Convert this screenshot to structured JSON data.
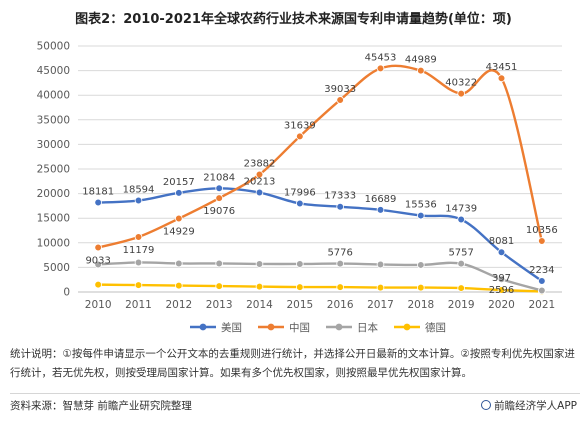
{
  "title": "图表2：2010-2021年全球农药行业技术来源国专利申请量趋势(单位：项)",
  "note": "统计说明：①按每件申请显示一个公开文本的去重规则进行统计，并选择公开日最新的文本计算。②按照专利优先权国家进行统计，若无优先权，则按受理局国家计算。如果有多个优先权国家，则按照最早优先权国家计算。",
  "source": "资料来源：智慧芽 前瞻产业研究院整理",
  "brand": "前瞻经济学人APP",
  "colors": {
    "usa": "#4472c4",
    "china": "#ed7d31",
    "japan": "#a5a5a5",
    "germany": "#ffc000",
    "grid": "#d9d9d9",
    "axis_text": "#595959"
  },
  "chart_data": {
    "type": "line",
    "title": "图表2：2010-2021年全球农药行业技术来源国专利申请量趋势(单位：项)",
    "x": [
      "2010",
      "2011",
      "2012",
      "2013",
      "2014",
      "2015",
      "2016",
      "2017",
      "2018",
      "2019",
      "2020",
      "2021"
    ],
    "ylim": [
      0,
      50000
    ],
    "yticks": [
      0,
      5000,
      10000,
      15000,
      20000,
      25000,
      30000,
      35000,
      40000,
      45000,
      50000
    ],
    "grid": true,
    "legend_position": "bottom",
    "series": [
      {
        "name": "美国",
        "color": "#4472c4",
        "values": [
          18181,
          18594,
          20157,
          21084,
          20213,
          17996,
          17333,
          16689,
          15536,
          14739,
          8081,
          2234
        ],
        "labels": [
          "18181",
          "18594",
          "20157",
          "21084",
          "20213",
          "17996",
          "17333",
          "16689",
          "15536",
          "14739",
          "8081",
          "2234"
        ]
      },
      {
        "name": "中国",
        "color": "#ed7d31",
        "values": [
          9033,
          11179,
          14929,
          19076,
          23882,
          31639,
          39033,
          45453,
          44989,
          40322,
          43451,
          10356
        ],
        "labels": [
          "9033",
          "11179",
          "14929",
          "19076",
          "23882",
          "31639",
          "39033",
          "45453",
          "44989",
          "40322",
          "43451",
          "10356"
        ]
      },
      {
        "name": "日本",
        "color": "#a5a5a5",
        "values": [
          5600,
          6000,
          5800,
          5800,
          5700,
          5700,
          5776,
          5600,
          5500,
          5757,
          2596,
          300
        ],
        "labels": [
          "",
          "",
          "",
          "",
          "",
          "",
          "5776",
          "",
          "",
          "5757",
          "2596",
          ""
        ]
      },
      {
        "name": "德国",
        "color": "#ffc000",
        "values": [
          1500,
          1400,
          1300,
          1200,
          1100,
          1000,
          1000,
          900,
          900,
          800,
          397,
          100
        ],
        "labels": [
          "",
          "",
          "",
          "",
          "",
          "",
          "",
          "",
          "",
          "",
          "397",
          ""
        ]
      }
    ]
  }
}
